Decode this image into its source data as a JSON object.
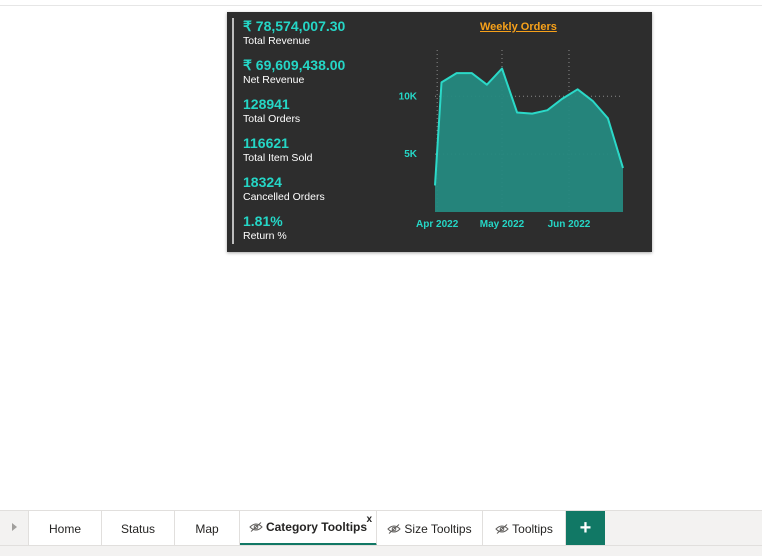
{
  "kpis": [
    {
      "value": "₹ 78,574,007.30",
      "label": "Total Revenue"
    },
    {
      "value": "₹ 69,609,438.00",
      "label": "Net Revenue"
    },
    {
      "value": "128941",
      "label": "Total Orders"
    },
    {
      "value": "116621",
      "label": "Total Item Sold"
    },
    {
      "value": "18324",
      "label": "Cancelled Orders"
    },
    {
      "value": "1.81%",
      "label": "Return %"
    }
  ],
  "chart_data": {
    "type": "area",
    "title": "Weekly Orders",
    "x": [
      "2022-03-31",
      "2022-04-03",
      "2022-04-10",
      "2022-04-17",
      "2022-04-24",
      "2022-05-01",
      "2022-05-08",
      "2022-05-15",
      "2022-05-22",
      "2022-05-29",
      "2022-06-05",
      "2022-06-12",
      "2022-06-19",
      "2022-06-26"
    ],
    "values": [
      2300,
      11200,
      12000,
      12000,
      11000,
      12400,
      8600,
      8500,
      8800,
      9800,
      10600,
      9600,
      8100,
      3800
    ],
    "y_ticks": [
      {
        "value": 5000,
        "label": "5K"
      },
      {
        "value": 10000,
        "label": "10K"
      }
    ],
    "x_ticks": [
      {
        "date": "2022-04-01",
        "label": "Apr 2022"
      },
      {
        "date": "2022-05-01",
        "label": "May 2022"
      },
      {
        "date": "2022-06-01",
        "label": "Jun 2022"
      }
    ],
    "ylim": [
      0,
      14000
    ],
    "grid": true,
    "colors": {
      "line": "#2bd9c8",
      "fill": "#25897f",
      "title": "#f7a11a",
      "ticks": "#25d6c6"
    }
  },
  "tabs": [
    {
      "label": "Home",
      "hidden": false,
      "active": false
    },
    {
      "label": "Status",
      "hidden": false,
      "active": false
    },
    {
      "label": "Map",
      "hidden": false,
      "active": false
    },
    {
      "label": "Category Tooltips",
      "hidden": true,
      "active": true,
      "close": "x"
    },
    {
      "label": "Size Tooltips",
      "hidden": true,
      "active": false
    },
    {
      "label": "Tooltips",
      "hidden": true,
      "active": false
    }
  ],
  "add_tab_label": "+",
  "icons": {
    "nav": "chevron-right-icon",
    "hidden_page": "eye-hidden-icon",
    "add": "plus-icon"
  }
}
